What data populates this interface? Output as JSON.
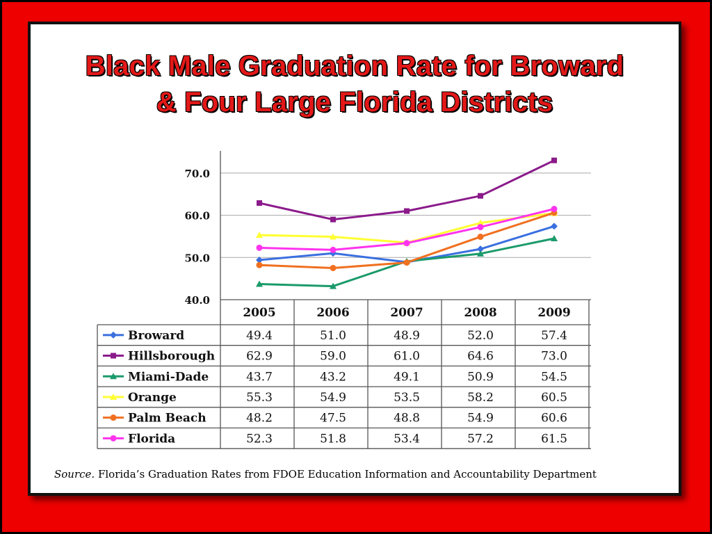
{
  "slide": {
    "title_line1": "Black Male Graduation Rate for Broward",
    "title_line2": "& Four Large Florida Districts",
    "source_label": "Source.",
    "source_text": " Florida’s Graduation Rates from FDOE Education Information and Accountability Department"
  },
  "chart_data": {
    "type": "line",
    "x": [
      "2005",
      "2006",
      "2007",
      "2008",
      "2009"
    ],
    "ylim": [
      40,
      75
    ],
    "yticks": [
      "40.0",
      "50.0",
      "60.0",
      "70.0"
    ],
    "grid": true,
    "legend": "table-left",
    "series": [
      {
        "name": "Broward",
        "color": "#3a6fe0",
        "marker": "diamond",
        "values": [
          49.4,
          51.0,
          48.9,
          52.0,
          57.4
        ],
        "labels": [
          "49.4",
          "51.0",
          "48.9",
          "52.0",
          "57.4"
        ]
      },
      {
        "name": "Hillsborough",
        "color": "#8b1a8b",
        "marker": "square",
        "values": [
          62.9,
          59.0,
          61.0,
          64.6,
          73.0
        ],
        "labels": [
          "62.9",
          "59.0",
          "61.0",
          "64.6",
          "73.0"
        ]
      },
      {
        "name": "Miami-Dade",
        "color": "#1a9a6a",
        "marker": "triangle",
        "values": [
          43.7,
          43.2,
          49.1,
          50.9,
          54.5
        ],
        "labels": [
          "43.7",
          "43.2",
          "49.1",
          "50.9",
          "54.5"
        ]
      },
      {
        "name": "Orange",
        "color": "#ffff33",
        "marker": "triangle",
        "values": [
          55.3,
          54.9,
          53.5,
          58.2,
          60.5
        ],
        "labels": [
          "55.3",
          "54.9",
          "53.5",
          "58.2",
          "60.5"
        ]
      },
      {
        "name": "Palm  Beach",
        "color": "#f07020",
        "marker": "circle",
        "values": [
          48.2,
          47.5,
          48.8,
          54.9,
          60.6
        ],
        "labels": [
          "48.2",
          "47.5",
          "48.8",
          "54.9",
          "60.6"
        ]
      },
      {
        "name": "Florida",
        "color": "#ff33ee",
        "marker": "circle",
        "values": [
          52.3,
          51.8,
          53.4,
          57.2,
          61.5
        ],
        "labels": [
          "52.3",
          "51.8",
          "53.4",
          "57.2",
          "61.5"
        ]
      }
    ]
  }
}
